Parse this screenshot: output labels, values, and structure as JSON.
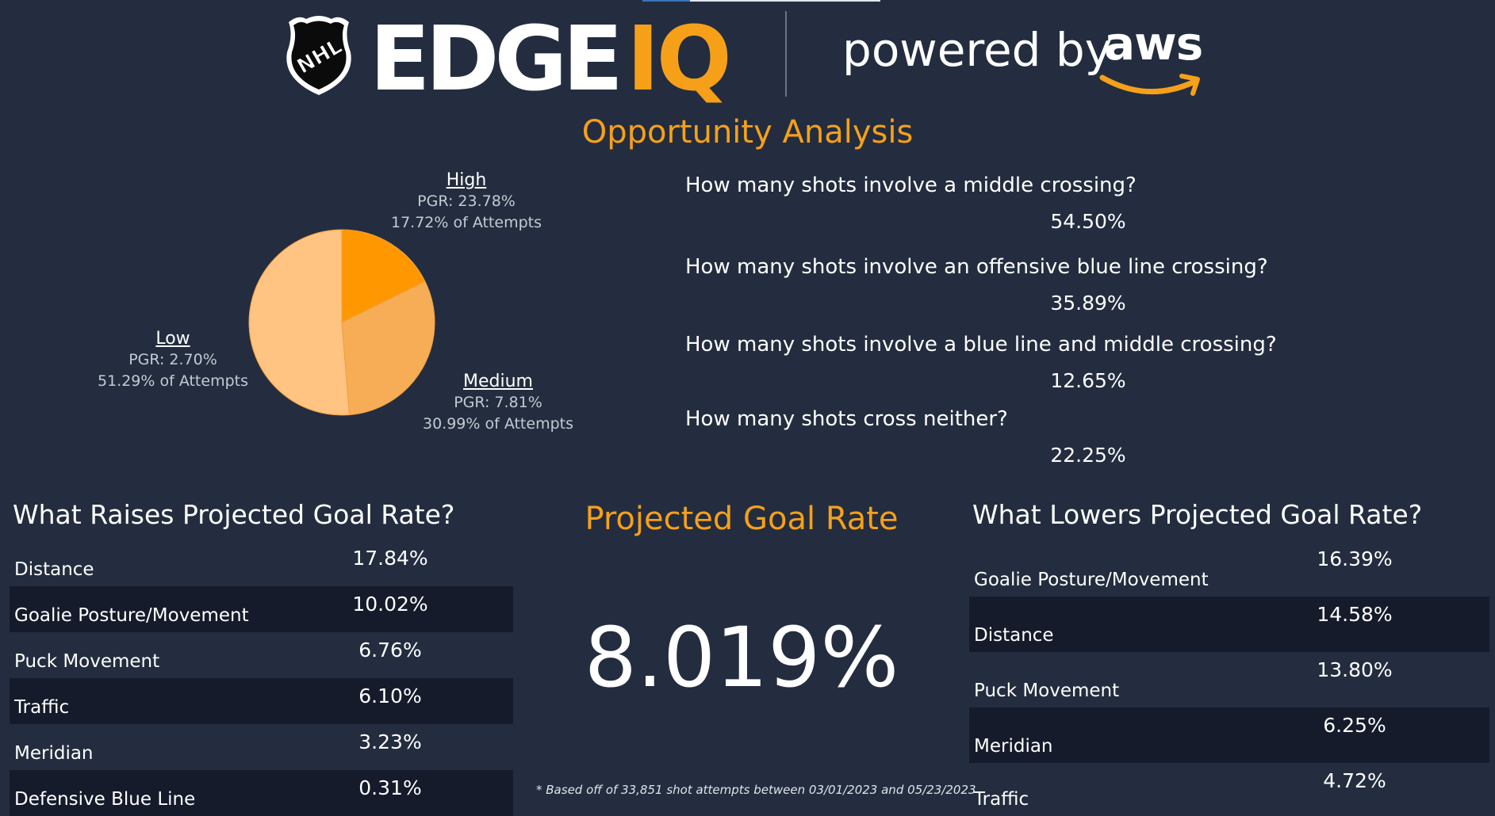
{
  "header": {
    "nhl_logo_text": "NHL",
    "brand_edge": "EDGE",
    "brand_iq": "IQ",
    "powered_by": "powered by",
    "aws": "aws"
  },
  "colors": {
    "background": "#232d3f",
    "accent": "#f6a01a",
    "row_dark": "#151b2b",
    "pie_low": "#ffc382",
    "pie_medium": "#f6ad55",
    "pie_high": "#ff9800"
  },
  "section_title": "Opportunity Analysis",
  "pie": {
    "segments": [
      {
        "key": "high",
        "title": "High",
        "pgr": "PGR: 23.78%",
        "share": "17.72% of Attempts",
        "value": 17.72,
        "color": "#ff9800"
      },
      {
        "key": "medium",
        "title": "Medium",
        "pgr": "PGR: 7.81%",
        "share": "30.99% of Attempts",
        "value": 30.99,
        "color": "#f6ad55"
      },
      {
        "key": "low",
        "title": "Low",
        "pgr": "PGR: 2.70%",
        "share": "51.29% of Attempts",
        "value": 51.29,
        "color": "#ffc382"
      }
    ]
  },
  "questions": [
    {
      "q": "How many shots involve a middle crossing?",
      "a": "54.50%"
    },
    {
      "q": "How many shots involve an offensive blue line crossing?",
      "a": "35.89%"
    },
    {
      "q": "How many shots involve a blue line and middle crossing?",
      "a": "12.65%"
    },
    {
      "q": "How many shots cross neither?",
      "a": "22.25%"
    }
  ],
  "raises": {
    "title": "What Raises Projected Goal Rate?",
    "rows": [
      {
        "label": "Distance",
        "value": "17.84%"
      },
      {
        "label": "Goalie Posture/Movement",
        "value": "10.02%"
      },
      {
        "label": "Puck Movement",
        "value": "6.76%"
      },
      {
        "label": "Traffic",
        "value": "6.10%"
      },
      {
        "label": "Meridian",
        "value": "3.23%"
      },
      {
        "label": "Defensive Blue Line",
        "value": "0.31%"
      }
    ]
  },
  "projected": {
    "title": "Projected Goal Rate",
    "value": "8.019%",
    "footnote": "* Based off of 33,851 shot attempts between 03/01/2023 and 05/23/2023"
  },
  "lowers": {
    "title": "What Lowers Projected Goal Rate?",
    "rows": [
      {
        "label": "Goalie Posture/Movement",
        "value": "16.39%"
      },
      {
        "label": "Distance",
        "value": "14.58%"
      },
      {
        "label": "Puck Movement",
        "value": "13.80%"
      },
      {
        "label": "Meridian",
        "value": "6.25%"
      },
      {
        "label": "Traffic",
        "value": "4.72%"
      }
    ]
  }
}
